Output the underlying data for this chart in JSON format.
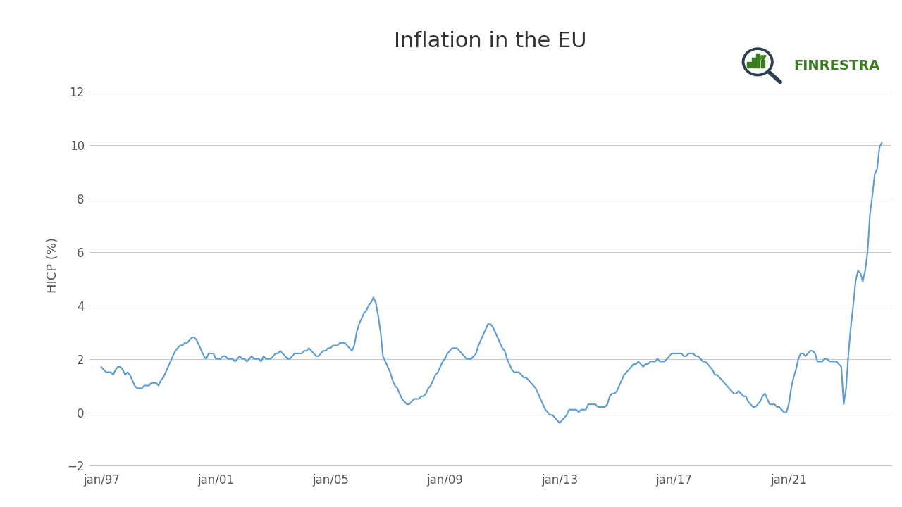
{
  "title": "Inflation in the EU",
  "ylabel": "HICP (%)",
  "line_color": "#5B9BD5",
  "line_width": 1.5,
  "bg_color": "#FFFFFF",
  "grid_color": "#C8C8C8",
  "ylim": [
    -2,
    13
  ],
  "yticks": [
    -2,
    0,
    2,
    4,
    6,
    8,
    10,
    12
  ],
  "x_tick_labels": [
    "jan/97",
    "jan/01",
    "jan/05",
    "jan/09",
    "jan/13",
    "jan/17",
    "jan/21"
  ],
  "title_fontsize": 22,
  "label_fontsize": 13,
  "tick_fontsize": 12,
  "finrestra_text": "FINRESTRA",
  "finrestra_color": "#3a7d1e",
  "hicp_data": [
    1.7,
    1.6,
    1.5,
    1.5,
    1.5,
    1.4,
    1.6,
    1.7,
    1.7,
    1.6,
    1.4,
    1.5,
    1.4,
    1.2,
    1.0,
    0.9,
    0.9,
    0.9,
    1.0,
    1.0,
    1.0,
    1.1,
    1.1,
    1.1,
    1.0,
    1.2,
    1.3,
    1.5,
    1.7,
    1.9,
    2.1,
    2.3,
    2.4,
    2.5,
    2.5,
    2.6,
    2.6,
    2.7,
    2.8,
    2.8,
    2.7,
    2.5,
    2.3,
    2.1,
    2.0,
    2.2,
    2.2,
    2.2,
    2.0,
    2.0,
    2.0,
    2.1,
    2.1,
    2.0,
    2.0,
    2.0,
    1.9,
    2.0,
    2.1,
    2.0,
    2.0,
    1.9,
    2.0,
    2.1,
    2.0,
    2.0,
    2.0,
    1.9,
    2.1,
    2.0,
    2.0,
    2.0,
    2.1,
    2.2,
    2.2,
    2.3,
    2.2,
    2.1,
    2.0,
    2.0,
    2.1,
    2.2,
    2.2,
    2.2,
    2.2,
    2.3,
    2.3,
    2.4,
    2.3,
    2.2,
    2.1,
    2.1,
    2.2,
    2.3,
    2.3,
    2.4,
    2.4,
    2.5,
    2.5,
    2.5,
    2.6,
    2.6,
    2.6,
    2.5,
    2.4,
    2.3,
    2.5,
    3.0,
    3.3,
    3.5,
    3.7,
    3.8,
    4.0,
    4.1,
    4.3,
    4.1,
    3.6,
    3.0,
    2.1,
    1.9,
    1.7,
    1.5,
    1.2,
    1.0,
    0.9,
    0.7,
    0.5,
    0.4,
    0.3,
    0.3,
    0.4,
    0.5,
    0.5,
    0.5,
    0.6,
    0.6,
    0.7,
    0.9,
    1.0,
    1.2,
    1.4,
    1.5,
    1.7,
    1.9,
    2.0,
    2.2,
    2.3,
    2.4,
    2.4,
    2.4,
    2.3,
    2.2,
    2.1,
    2.0,
    2.0,
    2.0,
    2.1,
    2.2,
    2.5,
    2.7,
    2.9,
    3.1,
    3.3,
    3.3,
    3.2,
    3.0,
    2.8,
    2.6,
    2.4,
    2.3,
    2.0,
    1.8,
    1.6,
    1.5,
    1.5,
    1.5,
    1.4,
    1.3,
    1.3,
    1.2,
    1.1,
    1.0,
    0.9,
    0.7,
    0.5,
    0.3,
    0.1,
    0.0,
    -0.1,
    -0.1,
    -0.2,
    -0.3,
    -0.4,
    -0.3,
    -0.2,
    -0.1,
    0.1,
    0.1,
    0.1,
    0.1,
    0.0,
    0.1,
    0.1,
    0.1,
    0.3,
    0.3,
    0.3,
    0.3,
    0.2,
    0.2,
    0.2,
    0.2,
    0.3,
    0.6,
    0.7,
    0.7,
    0.8,
    1.0,
    1.2,
    1.4,
    1.5,
    1.6,
    1.7,
    1.8,
    1.8,
    1.9,
    1.8,
    1.7,
    1.8,
    1.8,
    1.9,
    1.9,
    1.9,
    2.0,
    1.9,
    1.9,
    1.9,
    2.0,
    2.1,
    2.2,
    2.2,
    2.2,
    2.2,
    2.2,
    2.1,
    2.1,
    2.2,
    2.2,
    2.2,
    2.1,
    2.1,
    2.0,
    1.9,
    1.9,
    1.8,
    1.7,
    1.6,
    1.4,
    1.4,
    1.3,
    1.2,
    1.1,
    1.0,
    0.9,
    0.8,
    0.7,
    0.7,
    0.8,
    0.7,
    0.6,
    0.6,
    0.4,
    0.3,
    0.2,
    0.2,
    0.3,
    0.4,
    0.6,
    0.7,
    0.5,
    0.3,
    0.3,
    0.3,
    0.2,
    0.2,
    0.1,
    0.0,
    0.0,
    0.3,
    0.9,
    1.3,
    1.6,
    2.0,
    2.2,
    2.2,
    2.1,
    2.2,
    2.3,
    2.3,
    2.2,
    1.9,
    1.9,
    1.9,
    2.0,
    2.0,
    1.9,
    1.9,
    1.9,
    1.9,
    1.8,
    1.7,
    0.3,
    0.9,
    2.2,
    3.2,
    4.0,
    4.9,
    5.3,
    5.2,
    4.9,
    5.3,
    6.0,
    7.4,
    8.1,
    8.9,
    9.1,
    9.9,
    10.1
  ]
}
